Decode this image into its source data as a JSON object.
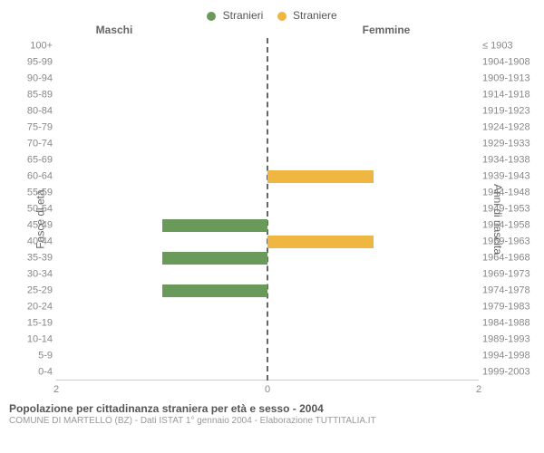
{
  "legend": {
    "items": [
      {
        "label": "Stranieri",
        "color": "#6a9a5a"
      },
      {
        "label": "Straniere",
        "color": "#f0b642"
      }
    ]
  },
  "headers": {
    "male": "Maschi",
    "female": "Femmine"
  },
  "axes": {
    "left_title": "Fasce di età",
    "right_title": "Anni di nascita",
    "xmax": 2,
    "xticks": [
      2,
      0,
      2
    ]
  },
  "age_groups": [
    {
      "age": "100+",
      "years": "≤ 1903",
      "male": 0,
      "female": 0
    },
    {
      "age": "95-99",
      "years": "1904-1908",
      "male": 0,
      "female": 0
    },
    {
      "age": "90-94",
      "years": "1909-1913",
      "male": 0,
      "female": 0
    },
    {
      "age": "85-89",
      "years": "1914-1918",
      "male": 0,
      "female": 0
    },
    {
      "age": "80-84",
      "years": "1919-1923",
      "male": 0,
      "female": 0
    },
    {
      "age": "75-79",
      "years": "1924-1928",
      "male": 0,
      "female": 0
    },
    {
      "age": "70-74",
      "years": "1929-1933",
      "male": 0,
      "female": 0
    },
    {
      "age": "65-69",
      "years": "1934-1938",
      "male": 0,
      "female": 0
    },
    {
      "age": "60-64",
      "years": "1939-1943",
      "male": 0,
      "female": 1
    },
    {
      "age": "55-59",
      "years": "1944-1948",
      "male": 0,
      "female": 0
    },
    {
      "age": "50-54",
      "years": "1949-1953",
      "male": 0,
      "female": 0
    },
    {
      "age": "45-49",
      "years": "1954-1958",
      "male": 1,
      "female": 0
    },
    {
      "age": "40-44",
      "years": "1959-1963",
      "male": 0,
      "female": 1
    },
    {
      "age": "35-39",
      "years": "1964-1968",
      "male": 1,
      "female": 0
    },
    {
      "age": "30-34",
      "years": "1969-1973",
      "male": 0,
      "female": 0
    },
    {
      "age": "25-29",
      "years": "1974-1978",
      "male": 1,
      "female": 0
    },
    {
      "age": "20-24",
      "years": "1979-1983",
      "male": 0,
      "female": 0
    },
    {
      "age": "15-19",
      "years": "1984-1988",
      "male": 0,
      "female": 0
    },
    {
      "age": "10-14",
      "years": "1989-1993",
      "male": 0,
      "female": 0
    },
    {
      "age": "5-9",
      "years": "1994-1998",
      "male": 0,
      "female": 0
    },
    {
      "age": "0-4",
      "years": "1999-2003",
      "male": 0,
      "female": 0
    }
  ],
  "colors": {
    "male_bar": "#6a9a5a",
    "female_bar": "#f0b642",
    "center_line": "#666666"
  },
  "caption": {
    "title": "Popolazione per cittadinanza straniera per età e sesso - 2004",
    "subtitle": "COMUNE DI MARTELLO (BZ) - Dati ISTAT 1° gennaio 2004 - Elaborazione TUTTITALIA.IT"
  }
}
